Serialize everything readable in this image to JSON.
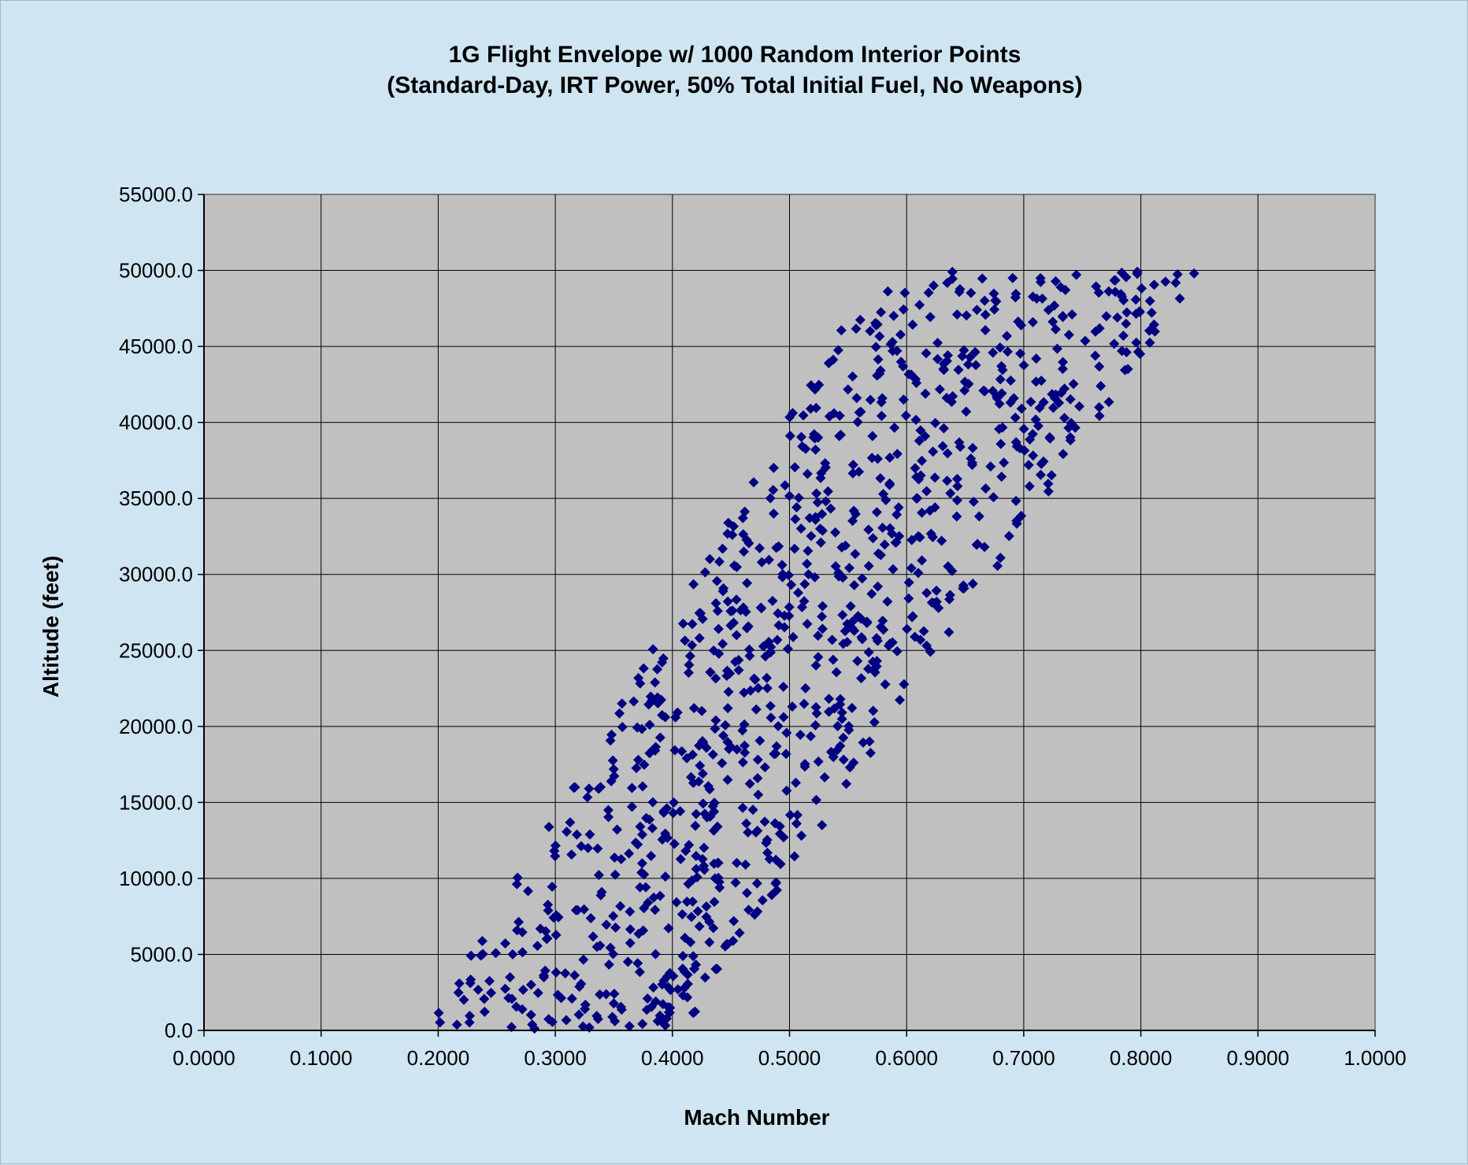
{
  "chart_data": {
    "type": "scatter",
    "title": "1G Flight Envelope w/ 1000 Random Interior Points",
    "subtitle": "(Standard-Day, IRT Power, 50%  Total Initial Fuel, No Weapons)",
    "xlabel": "Mach Number",
    "ylabel": "Altitude (feet)",
    "xlim": [
      0,
      1
    ],
    "ylim": [
      0,
      55000
    ],
    "x_ticks": [
      "0.0000",
      "0.1000",
      "0.2000",
      "0.3000",
      "0.4000",
      "0.5000",
      "0.6000",
      "0.7000",
      "0.8000",
      "0.9000",
      "1.0000"
    ],
    "y_ticks": [
      "0.0",
      "5000.0",
      "10000.0",
      "15000.0",
      "20000.0",
      "25000.0",
      "30000.0",
      "35000.0",
      "40000.0",
      "45000.0",
      "50000.0",
      "55000.0"
    ],
    "grid": true,
    "legend": "none",
    "marker": "diamond",
    "colors": {
      "marker": "#000080",
      "plot_bg": "#c0c0c0",
      "page_bg": "#cfe5f2",
      "grid": "#000000"
    },
    "envelope_description": "Points fill the region bounded below-left by the line from (0.19, 0) to (0.57, 49500) and below-right by the line from (0.41, 0) to (0.85, 50000), with Mach capped at 0.85 and altitude at 50000.",
    "point_count": 1000
  }
}
